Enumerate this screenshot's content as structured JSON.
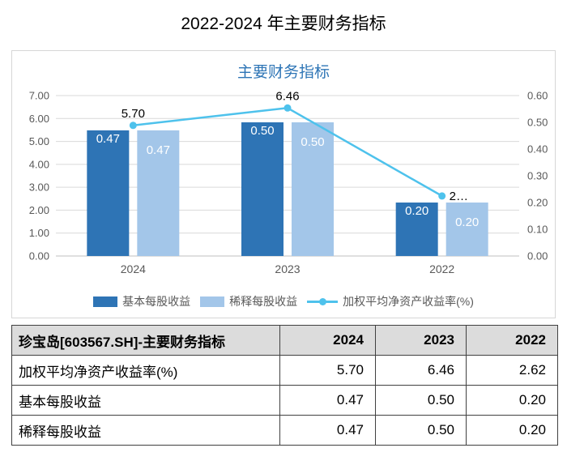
{
  "page": {
    "title": "2022-2024 年主要财务指标"
  },
  "chart_data": {
    "type": "bar",
    "combo": "bar+line dual-axis",
    "title": "主要财务指标",
    "categories": [
      "2024",
      "2023",
      "2022"
    ],
    "series": [
      {
        "name": "基本每股收益",
        "type": "bar",
        "axis": "right",
        "values": [
          0.47,
          0.5,
          0.2
        ],
        "labels": [
          "0.47",
          "0.50",
          "0.20"
        ],
        "color": "#2e74b5",
        "label_color": "#ffffff"
      },
      {
        "name": "稀释每股收益",
        "type": "bar",
        "axis": "right",
        "values": [
          0.47,
          0.5,
          0.2
        ],
        "labels": [
          "0.47",
          "0.50",
          "0.20"
        ],
        "color": "#a3c6e9",
        "label_color": "#ffffff"
      },
      {
        "name": "加权平均净资产收益率(%)",
        "type": "line",
        "axis": "left",
        "values": [
          5.7,
          6.46,
          2.62
        ],
        "labels": [
          "5.70",
          "6.46",
          "2…"
        ],
        "label_pos": [
          "above",
          "above",
          "right"
        ],
        "color": "#4ec2ec",
        "label_color": "#000000"
      }
    ],
    "left_axis": {
      "min": 0,
      "max": 7,
      "ticks": [
        "0.00",
        "1.00",
        "2.00",
        "3.00",
        "4.00",
        "5.00",
        "6.00",
        "7.00"
      ]
    },
    "right_axis": {
      "min": 0,
      "max": 0.6,
      "ticks": [
        "0.00",
        "0.10",
        "0.20",
        "0.30",
        "0.40",
        "0.50",
        "0.60"
      ]
    },
    "grid": true,
    "legend_position": "bottom",
    "colors": {
      "grid": "#d9d9d9",
      "baseline": "#bfbfbf",
      "axis_text": "#595959"
    }
  },
  "table": {
    "header": [
      "珍宝岛[603567.SH]-主要财务指标",
      "2024",
      "2023",
      "2022"
    ],
    "rows": [
      [
        "加权平均净资产收益率(%)",
        "5.70",
        "6.46",
        "2.62"
      ],
      [
        "基本每股收益",
        "0.47",
        "0.50",
        "0.20"
      ],
      [
        "稀释每股收益",
        "0.47",
        "0.50",
        "0.20"
      ]
    ]
  }
}
